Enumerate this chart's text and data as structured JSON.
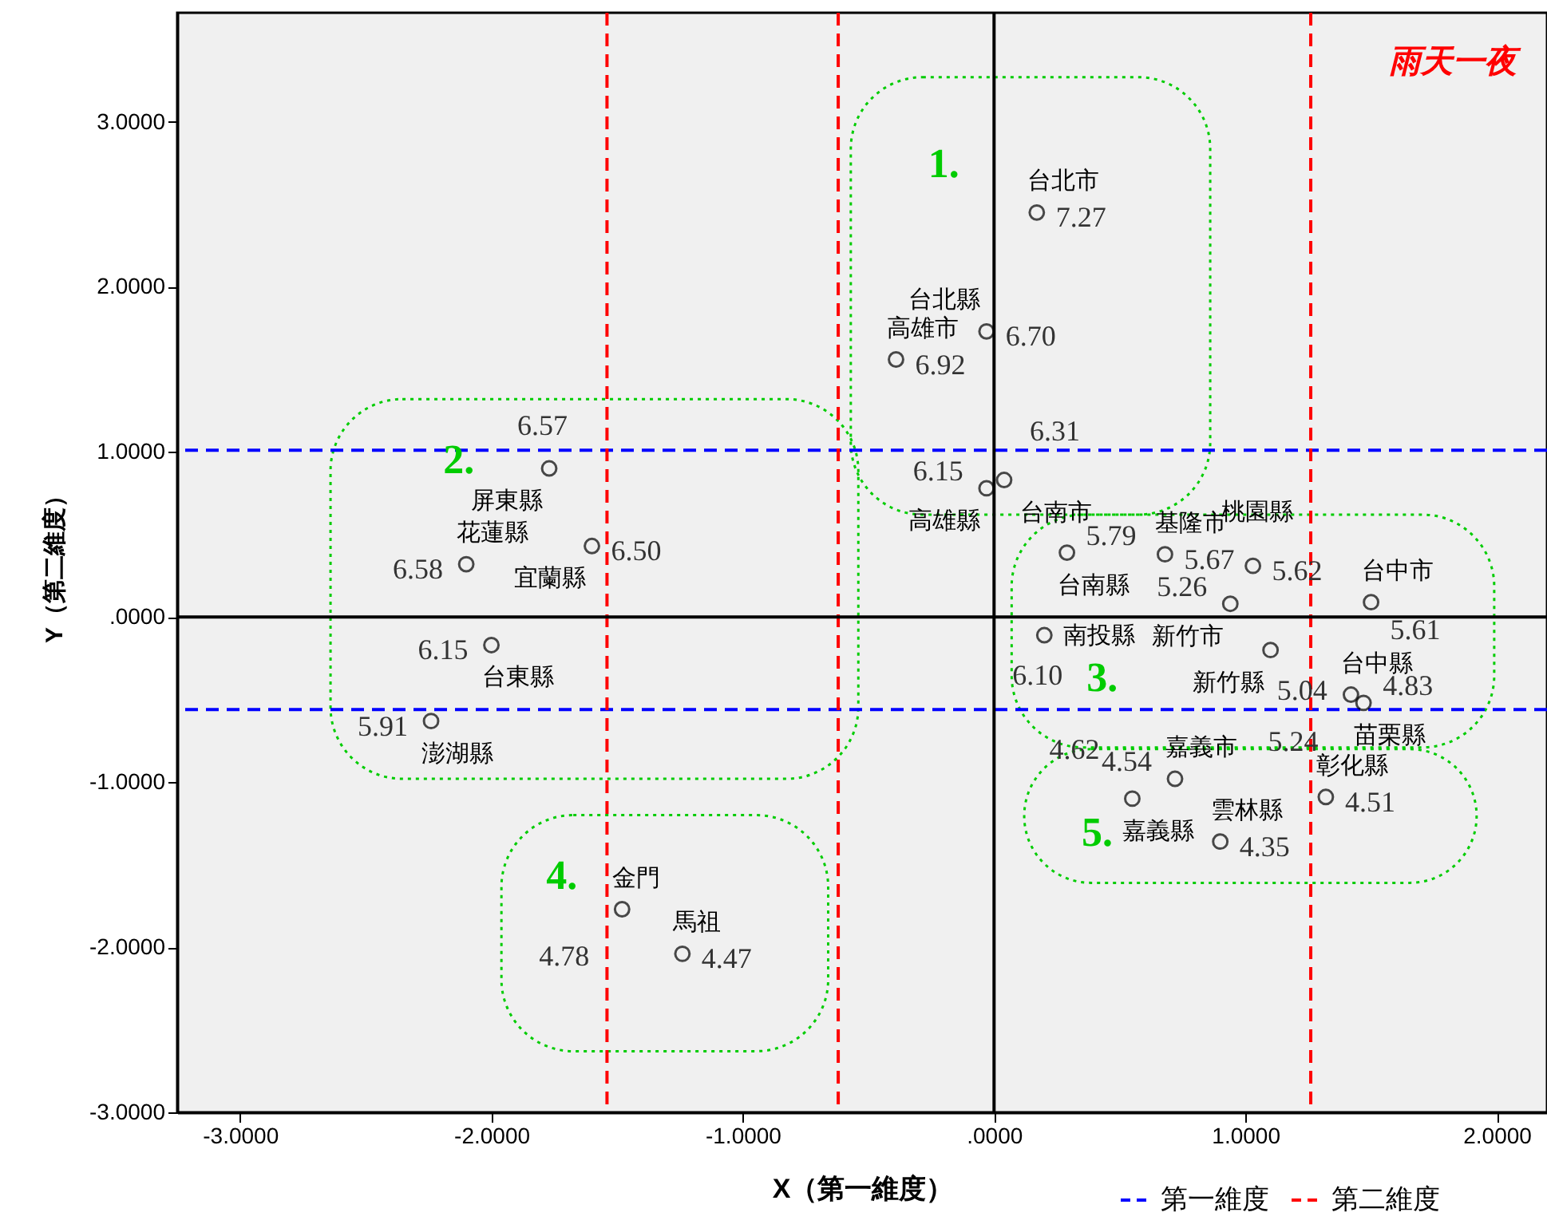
{
  "chart_data": {
    "type": "scatter",
    "title": "雨天一夜",
    "xlabel": "X（第一維度）",
    "ylabel": "Y（第二維度）",
    "xlim": [
      -3.25,
      2.2
    ],
    "ylim": [
      -3,
      3.66
    ],
    "xticks": [
      {
        "value": -3,
        "label": "-3.0000"
      },
      {
        "value": -2,
        "label": "-2.0000"
      },
      {
        "value": -1,
        "label": "-1.0000"
      },
      {
        "value": 0,
        "label": ".0000"
      },
      {
        "value": 1,
        "label": "1.0000"
      },
      {
        "value": 2,
        "label": "2.0000"
      }
    ],
    "yticks": [
      {
        "value": -3,
        "label": "-3.0000"
      },
      {
        "value": -2,
        "label": "-2.0000"
      },
      {
        "value": -1,
        "label": "-1.0000"
      },
      {
        "value": 0,
        "label": ".0000"
      },
      {
        "value": 1,
        "label": "1.0000"
      },
      {
        "value": 2,
        "label": "2.0000"
      },
      {
        "value": 3,
        "label": "3.0000"
      }
    ],
    "grid": false,
    "marker": "circle",
    "legend": "bottom right",
    "series": [
      {
        "name": "台北市",
        "color": "#000000",
        "x": [
          0.17
        ],
        "values": [
          2.45
        ]
      },
      {
        "name": "台北縣",
        "color": "#000000",
        "x": [
          -0.03
        ],
        "values": [
          1.73
        ]
      },
      {
        "name": "高雄市",
        "color": "#000000",
        "x": [
          -0.39
        ],
        "values": [
          1.56
        ]
      },
      {
        "name": "台南市",
        "color": "#000000",
        "x": [
          0.04
        ],
        "values": [
          0.83
        ]
      },
      {
        "name": "高雄縣",
        "color": "#000000",
        "x": [
          -0.03
        ],
        "values": [
          0.78
        ]
      },
      {
        "name": "屏東縣",
        "color": "#000000",
        "x": [
          -1.77
        ],
        "values": [
          0.9
        ]
      },
      {
        "name": "花蓮縣",
        "color": "#000000",
        "x": [
          -2.1
        ],
        "values": [
          0.32
        ]
      },
      {
        "name": "宜蘭縣",
        "color": "#000000",
        "x": [
          -1.6
        ],
        "values": [
          0.43
        ]
      },
      {
        "name": "台東縣",
        "color": "#000000",
        "x": [
          -2.0
        ],
        "values": [
          -0.17
        ]
      },
      {
        "name": "澎湖縣",
        "color": "#000000",
        "x": [
          -2.24
        ],
        "values": [
          -0.63
        ]
      },
      {
        "name": "台南縣",
        "color": "#000000",
        "x": [
          0.29
        ],
        "values": [
          0.39
        ]
      },
      {
        "name": "基隆市",
        "color": "#000000",
        "x": [
          0.68
        ],
        "values": [
          0.38
        ]
      },
      {
        "name": "桃園縣",
        "color": "#000000",
        "x": [
          1.03
        ],
        "values": [
          0.31
        ]
      },
      {
        "name": "台中市",
        "color": "#000000",
        "x": [
          1.5
        ],
        "values": [
          0.09
        ]
      },
      {
        "name": "南投縣",
        "color": "#000000",
        "x": [
          0.2
        ],
        "values": [
          -0.11
        ]
      },
      {
        "name": "新竹市",
        "color": "#000000",
        "x": [
          0.94
        ],
        "values": [
          0.08
        ]
      },
      {
        "name": "新竹縣",
        "color": "#000000",
        "x": [
          1.1
        ],
        "values": [
          -0.2
        ]
      },
      {
        "name": "台中縣",
        "color": "#000000",
        "x": [
          1.42
        ],
        "values": [
          -0.47
        ]
      },
      {
        "name": "苗栗縣",
        "color": "#000000",
        "x": [
          1.47
        ],
        "values": [
          -0.52
        ]
      },
      {
        "name": "嘉義市",
        "color": "#000000",
        "x": [
          0.72
        ],
        "values": [
          -0.98
        ]
      },
      {
        "name": "嘉義縣",
        "color": "#000000",
        "x": [
          0.55
        ],
        "values": [
          -1.1
        ]
      },
      {
        "name": "雲林縣",
        "color": "#000000",
        "x": [
          0.9
        ],
        "values": [
          -1.36
        ]
      },
      {
        "name": "彰化縣",
        "color": "#000000",
        "x": [
          1.32
        ],
        "values": [
          -1.09
        ]
      },
      {
        "name": "金門",
        "color": "#000000",
        "x": [
          -1.48
        ],
        "values": [
          -1.77
        ]
      },
      {
        "name": "馬祖",
        "color": "#000000",
        "x": [
          -1.24
        ],
        "values": [
          -2.04
        ]
      }
    ],
    "ref_lines": [
      {
        "axis": "y",
        "value": 1.01,
        "label": "第一維度",
        "color": "#0000ff",
        "line_style": "dashed"
      },
      {
        "axis": "y",
        "value": -0.56,
        "color": "#0000ff",
        "line_style": "dashed"
      },
      {
        "axis": "x",
        "value": -1.54,
        "label": "第二維度",
        "color": "#ff0000",
        "line_style": "dashed"
      },
      {
        "axis": "x",
        "value": -0.62,
        "color": "#ff0000",
        "line_style": "dashed"
      },
      {
        "axis": "x",
        "value": 1.26,
        "color": "#ff0000",
        "line_style": "dashed"
      },
      {
        "axis": "x",
        "value": 0,
        "color": "#000000",
        "line_style": "solid"
      },
      {
        "axis": "y",
        "value": 0,
        "color": "#000000",
        "line_style": "solid"
      }
    ],
    "annotations": [
      "1.",
      "2.",
      "3.",
      "4.",
      "5.",
      {
        "text": "7.27",
        "x": 0.17,
        "y": 2.45
      },
      {
        "text": "6.70",
        "x": -0.03,
        "y": 1.73
      },
      {
        "text": "6.92",
        "x": -0.39,
        "y": 1.56
      },
      {
        "text": "6.31",
        "x": 0.04,
        "y": 0.83
      },
      {
        "text": "6.15",
        "x": -0.03,
        "y": 0.78
      },
      {
        "text": "6.57",
        "x": -1.77,
        "y": 0.9
      },
      {
        "text": "6.58",
        "x": -2.1,
        "y": 0.32
      },
      {
        "text": "6.50",
        "x": -1.6,
        "y": 0.43
      },
      {
        "text": "6.15",
        "x": -2.0,
        "y": -0.17
      },
      {
        "text": "5.91",
        "x": -2.24,
        "y": -0.63
      },
      {
        "text": "5.79",
        "x": 0.29,
        "y": 0.39
      },
      {
        "text": "5.67",
        "x": 0.68,
        "y": 0.38
      },
      {
        "text": "5.62",
        "x": 1.03,
        "y": 0.31
      },
      {
        "text": "5.61",
        "x": 1.5,
        "y": 0.09
      },
      {
        "text": "6.10",
        "x": 0.2,
        "y": -0.11
      },
      {
        "text": "5.26",
        "x": 0.94,
        "y": 0.08
      },
      {
        "text": "5.04",
        "x": 1.1,
        "y": -0.2
      },
      {
        "text": "5.24",
        "x": 1.42,
        "y": -0.47
      },
      {
        "text": "4.83",
        "x": 1.47,
        "y": -0.52
      },
      {
        "text": "4.54",
        "x": 0.72,
        "y": -0.98
      },
      {
        "text": "4.62",
        "x": 0.55,
        "y": -1.1
      },
      {
        "text": "4.35",
        "x": 0.9,
        "y": -1.36
      },
      {
        "text": "4.51",
        "x": 1.32,
        "y": -1.09
      },
      {
        "text": "4.78",
        "x": -1.48,
        "y": -1.77
      },
      {
        "text": "4.47",
        "x": -1.24,
        "y": -2.04
      }
    ]
  }
}
